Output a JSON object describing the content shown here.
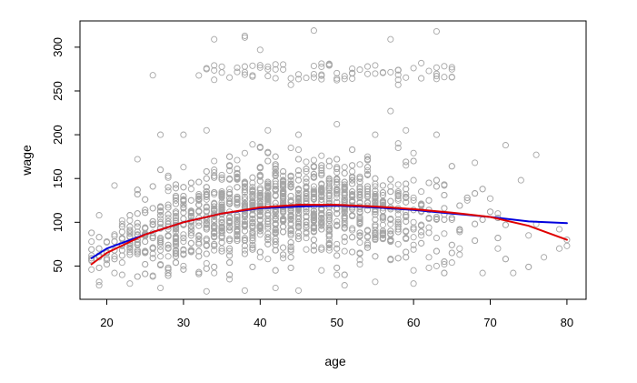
{
  "chart_data": {
    "type": "scatter",
    "xlabel": "age",
    "ylabel": "wage",
    "xlim": [
      16.5,
      82.5
    ],
    "ylim": [
      12,
      330
    ],
    "x_ticks": [
      20,
      30,
      40,
      50,
      60,
      70,
      80
    ],
    "y_ticks": [
      50,
      100,
      150,
      200,
      250,
      300
    ],
    "grid": false,
    "legend": "none",
    "point_color": "#a6a6a6",
    "sample_points": [
      [
        26,
        268
      ],
      [
        34,
        309
      ],
      [
        38,
        313
      ],
      [
        38,
        311
      ],
      [
        40,
        297
      ],
      [
        47,
        319
      ],
      [
        63,
        318
      ],
      [
        57,
        309
      ],
      [
        44,
        257
      ],
      [
        58,
        257
      ],
      [
        50,
        212
      ],
      [
        57,
        227
      ],
      [
        27,
        200
      ],
      [
        30,
        200
      ],
      [
        45,
        200
      ],
      [
        55,
        200
      ],
      [
        63,
        200
      ],
      [
        72,
        188
      ],
      [
        76,
        177
      ],
      [
        68,
        168
      ],
      [
        24,
        172
      ],
      [
        21,
        142
      ],
      [
        19,
        108
      ],
      [
        18,
        78
      ],
      [
        18,
        62
      ],
      [
        19,
        28
      ],
      [
        19,
        32
      ],
      [
        22,
        40
      ],
      [
        23,
        30
      ],
      [
        27,
        25
      ],
      [
        33,
        21
      ],
      [
        36,
        35
      ],
      [
        38,
        22
      ],
      [
        42,
        25
      ],
      [
        45,
        22
      ],
      [
        51,
        28
      ],
      [
        55,
        32
      ],
      [
        60,
        30
      ],
      [
        64,
        52
      ],
      [
        69,
        42
      ],
      [
        73,
        42
      ],
      [
        77,
        60
      ],
      [
        79,
        70
      ],
      [
        80,
        73
      ],
      [
        80,
        80
      ],
      [
        75,
        85
      ],
      [
        66,
        70
      ],
      [
        62,
        60
      ],
      [
        50,
        40
      ],
      [
        48,
        45
      ],
      [
        30,
        50
      ],
      [
        28,
        48
      ],
      [
        25,
        65
      ],
      [
        35,
        70
      ],
      [
        37,
        85
      ],
      [
        33,
        205
      ],
      [
        41,
        205
      ],
      [
        59,
        205
      ],
      [
        74,
        148
      ],
      [
        70,
        127
      ],
      [
        76,
        98
      ],
      [
        79,
        92
      ],
      [
        71,
        110
      ],
      [
        67,
        125
      ],
      [
        52,
        270
      ]
    ],
    "high_cluster": {
      "x_range": [
        32,
        66
      ],
      "y_range": [
        262,
        282
      ],
      "count": 80
    },
    "bulk": {
      "count": 2200
    },
    "series": [
      {
        "color": "#0000dd",
        "x": [
          18,
          20,
          25,
          30,
          35,
          40,
          45,
          50,
          55,
          60,
          65,
          70,
          75,
          80
        ],
        "values": [
          59,
          70,
          86,
          100,
          110,
          116,
          118,
          119,
          117,
          114,
          110,
          106,
          101,
          99
        ]
      },
      {
        "color": "#e00000",
        "x": [
          18,
          20,
          25,
          30,
          35,
          40,
          45,
          50,
          55,
          60,
          65,
          70,
          75,
          80
        ],
        "values": [
          52,
          65,
          86,
          100,
          110,
          117,
          120,
          120,
          118,
          115,
          111,
          106,
          96,
          80
        ]
      }
    ]
  }
}
